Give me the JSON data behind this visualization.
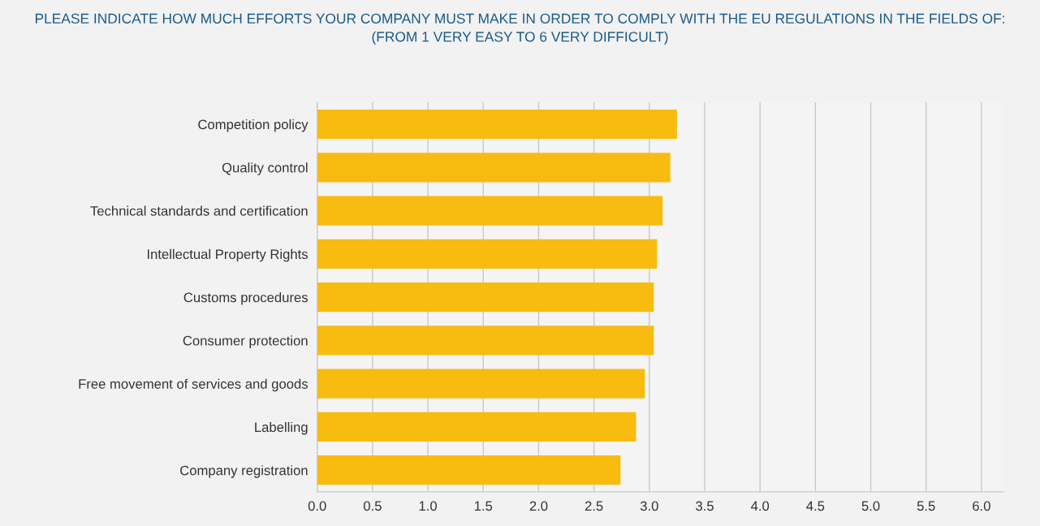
{
  "chart_data": {
    "type": "bar",
    "orientation": "horizontal",
    "title": "PLEASE INDICATE HOW MUCH EFFORTS YOUR COMPANY MUST MAKE IN ORDER TO COMPLY WITH THE EU REGULATIONS IN THE FIELDS OF:\n(FROM 1 VERY EASY TO 6 VERY DIFFICULT)",
    "categories": [
      "Competition policy",
      "Quality control",
      "Technical standards and certification",
      "Intellectual Property Rights",
      "Customs procedures",
      "Consumer protection",
      "Free movement of services and goods",
      "Labelling",
      "Company registration"
    ],
    "values": [
      3.25,
      3.19,
      3.12,
      3.07,
      3.04,
      3.04,
      2.96,
      2.88,
      2.74
    ],
    "color": "#f8bb10",
    "xlim": [
      0,
      6.2
    ],
    "xticks": [
      {
        "value": 0,
        "label": "0.0"
      },
      {
        "value": 0.5,
        "label": "0.5"
      },
      {
        "value": 1,
        "label": "1.0"
      },
      {
        "value": 1.5,
        "label": "1.5"
      },
      {
        "value": 2,
        "label": "2.0"
      },
      {
        "value": 2.5,
        "label": "2.5"
      },
      {
        "value": 3,
        "label": "3.0"
      },
      {
        "value": 3.5,
        "label": "3.5"
      },
      {
        "value": 4,
        "label": "4.0"
      },
      {
        "value": 4.5,
        "label": "4.5"
      },
      {
        "value": 5,
        "label": "5.0"
      },
      {
        "value": 5.5,
        "label": "5.5"
      },
      {
        "value": 6,
        "label": "6.0"
      }
    ],
    "grid": "x",
    "legend": false
  }
}
